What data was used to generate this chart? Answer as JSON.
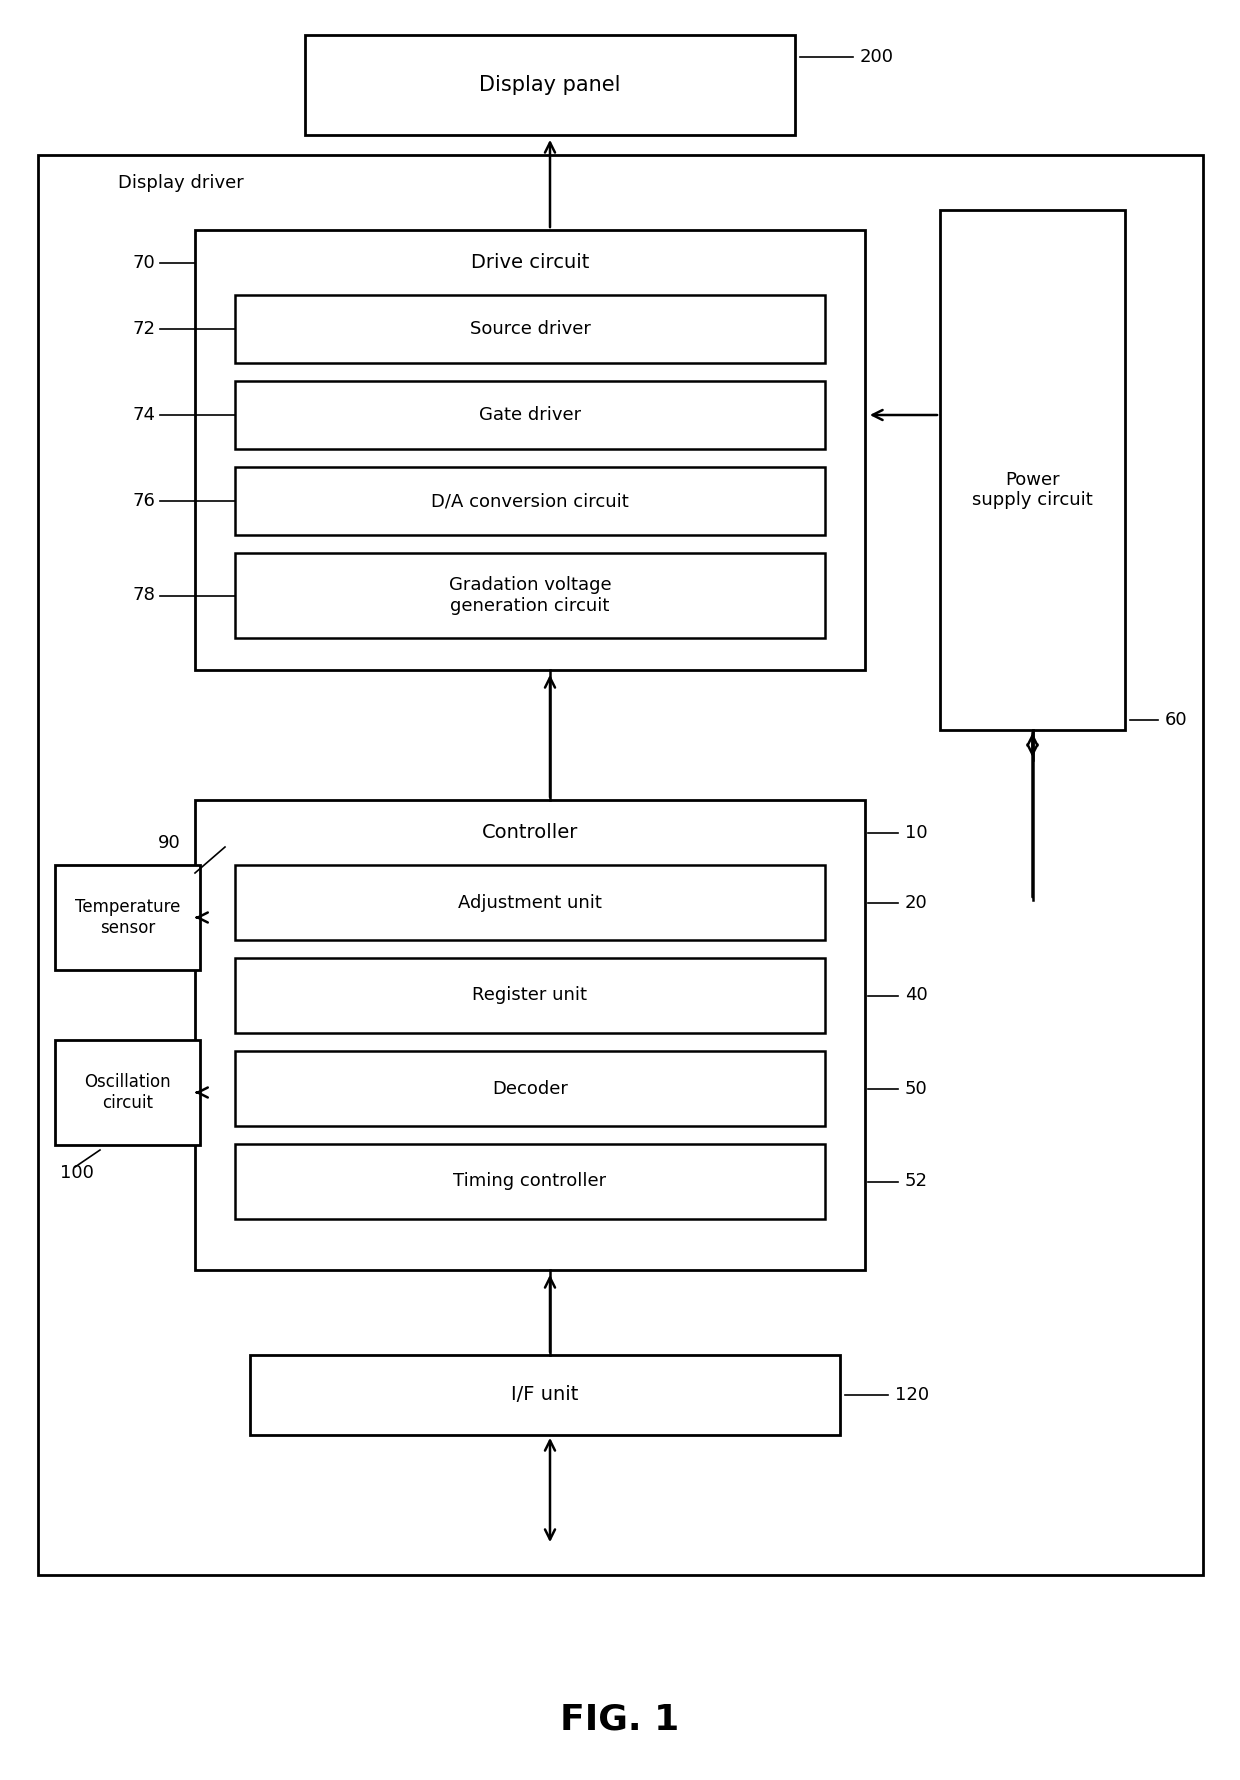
{
  "title": "FIG. 1",
  "bg_color": "#ffffff",
  "display_panel": {
    "label": "Display panel",
    "ref": "200"
  },
  "display_driver_label": "Display driver",
  "drive_circuit_label": "Drive circuit",
  "drive_circuit_ref": "70",
  "sub_drive": [
    {
      "label": "Source driver",
      "ref": "72"
    },
    {
      "label": "Gate driver",
      "ref": "74"
    },
    {
      "label": "D/A conversion circuit",
      "ref": "76"
    },
    {
      "label": "Gradation voltage\ngeneration circuit",
      "ref": "78"
    }
  ],
  "controller_label": "Controller",
  "controller_ref": "10",
  "sub_ctrl": [
    {
      "label": "Adjustment unit",
      "ref": "20"
    },
    {
      "label": "Register unit",
      "ref": "40"
    },
    {
      "label": "Decoder",
      "ref": "50"
    },
    {
      "label": "Timing controller",
      "ref": "52"
    }
  ],
  "if_unit": {
    "label": "I/F unit",
    "ref": "120"
  },
  "power_supply": {
    "label": "Power\nsupply circuit",
    "ref": "60"
  },
  "temp_sensor": {
    "label": "Temperature\nsensor",
    "ref": "90"
  },
  "osc_circuit": {
    "label": "Oscillation\ncircuit",
    "ref": "100"
  }
}
